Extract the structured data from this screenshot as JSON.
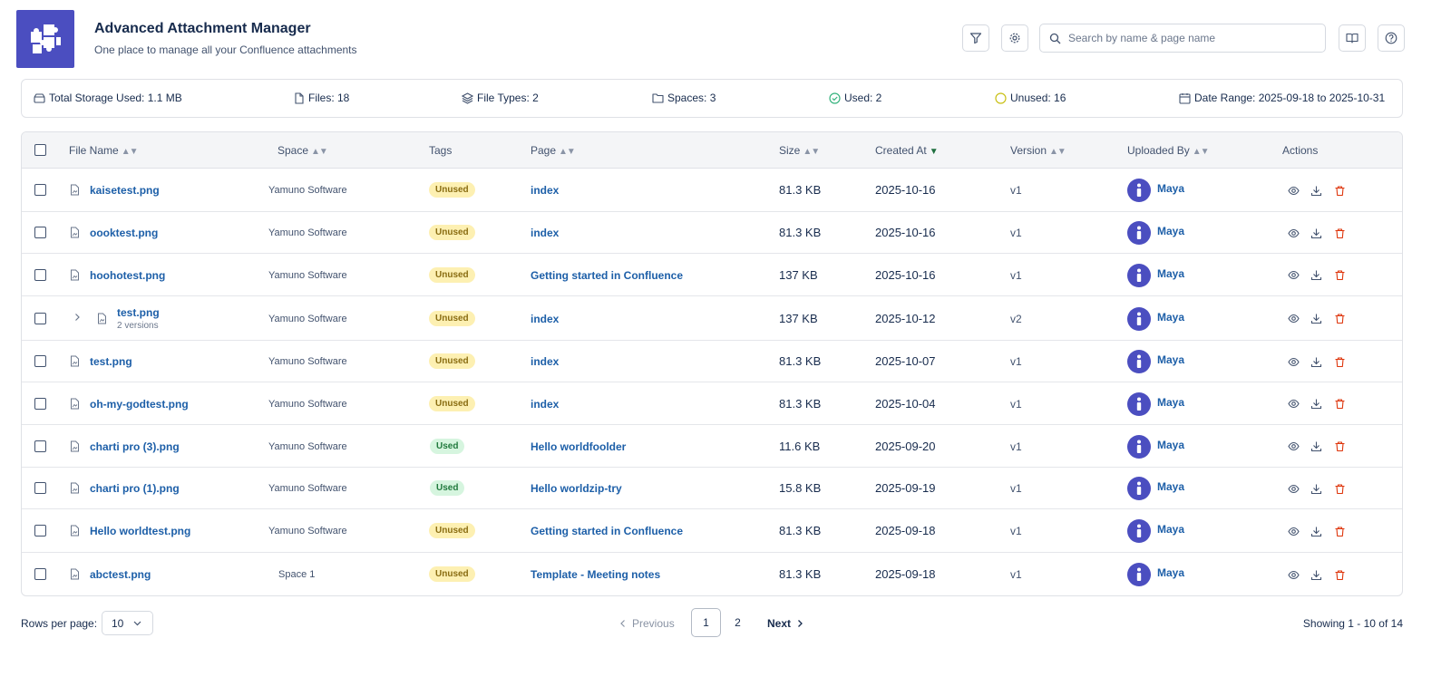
{
  "app": {
    "title": "Advanced Attachment Manager",
    "subtitle": "One place to manage all your Confluence attachments",
    "logo_icon": "puzzle-icon"
  },
  "search": {
    "placeholder": "Search by name & page name",
    "value": ""
  },
  "stats": {
    "storage": "Total Storage Used: 1.1 MB",
    "files": "Files: 18",
    "file_types": "File Types: 2",
    "spaces": "Spaces: 3",
    "used": "Used: 2",
    "unused": "Unused: 16",
    "date_range": "Date Range: 2025-09-18 to 2025-10-31"
  },
  "table": {
    "columns": {
      "file_name": "File Name",
      "space": "Space",
      "tags": "Tags",
      "page": "Page",
      "size": "Size",
      "created_at": "Created At",
      "version": "Version",
      "uploaded_by": "Uploaded By",
      "actions": "Actions"
    },
    "rows": [
      {
        "file": "kaisetest.png",
        "space": "Yamuno Software",
        "tag": "Unused",
        "page": "index",
        "size": "81.3 KB",
        "created": "2025-10-16",
        "version": "v1",
        "user": "Maya"
      },
      {
        "file": "oooktest.png",
        "space": "Yamuno Software",
        "tag": "Unused",
        "page": "index",
        "size": "81.3 KB",
        "created": "2025-10-16",
        "version": "v1",
        "user": "Maya"
      },
      {
        "file": "hoohotest.png",
        "space": "Yamuno Software",
        "tag": "Unused",
        "page": "Getting started in Confluence",
        "size": "137 KB",
        "created": "2025-10-16",
        "version": "v1",
        "user": "Maya"
      },
      {
        "file": "test.png",
        "sub": "2 versions",
        "space": "Yamuno Software",
        "tag": "Unused",
        "page": "index",
        "size": "137 KB",
        "created": "2025-10-12",
        "version": "v2",
        "user": "Maya"
      },
      {
        "file": "test.png",
        "space": "Yamuno Software",
        "tag": "Unused",
        "page": "index",
        "size": "81.3 KB",
        "created": "2025-10-07",
        "version": "v1",
        "user": "Maya"
      },
      {
        "file": "oh-my-godtest.png",
        "space": "Yamuno Software",
        "tag": "Unused",
        "page": "index",
        "size": "81.3 KB",
        "created": "2025-10-04",
        "version": "v1",
        "user": "Maya"
      },
      {
        "file": "charti pro (3).png",
        "space": "Yamuno Software",
        "tag": "Used",
        "page": "Hello worldfoolder",
        "size": "11.6 KB",
        "created": "2025-09-20",
        "version": "v1",
        "user": "Maya"
      },
      {
        "file": "charti pro (1).png",
        "space": "Yamuno Software",
        "tag": "Used",
        "page": "Hello worldzip-try",
        "size": "15.8 KB",
        "created": "2025-09-19",
        "version": "v1",
        "user": "Maya"
      },
      {
        "file": "Hello worldtest.png",
        "space": "Yamuno Software",
        "tag": "Unused",
        "page": "Getting started in Confluence",
        "size": "81.3 KB",
        "created": "2025-09-18",
        "version": "v1",
        "user": "Maya"
      },
      {
        "file": "abctest.png",
        "space": "Space 1",
        "tag": "Unused",
        "page": "Template - Meeting notes",
        "size": "81.3 KB",
        "created": "2025-09-18",
        "version": "v1",
        "user": "Maya"
      }
    ]
  },
  "footer": {
    "rows_label": "Rows per page:",
    "rows_value": "10",
    "previous": "Previous",
    "next": "Next",
    "pages": [
      "1",
      "2"
    ],
    "current_page": "1",
    "showing": "Showing 1 - 10 of 14"
  },
  "colors": {
    "brand": "#4b4ec0",
    "link": "#1d5fa8",
    "unused_bg": "#fdf0b2",
    "used_bg": "#d6f5df",
    "delete": "#de350b"
  }
}
